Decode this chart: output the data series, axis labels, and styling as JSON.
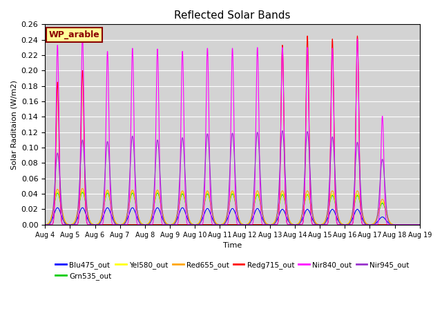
{
  "title": "Reflected Solar Bands",
  "xlabel": "Time",
  "ylabel": "Solar Raditaion (W/m2)",
  "ylim": [
    0,
    0.26
  ],
  "annotation_text": "WP_arable",
  "annotation_color": "#8B0000",
  "annotation_bg": "#FFFF99",
  "background_color": "#D3D3D3",
  "series": [
    {
      "name": "Blu475_out",
      "color": "#0000FF"
    },
    {
      "name": "Grn535_out",
      "color": "#00CC00"
    },
    {
      "name": "Yel580_out",
      "color": "#FFFF00"
    },
    {
      "name": "Red655_out",
      "color": "#FFA500"
    },
    {
      "name": "Redg715_out",
      "color": "#FF0000"
    },
    {
      "name": "Nir840_out",
      "color": "#FF00FF"
    },
    {
      "name": "Nir945_out",
      "color": "#9932CC"
    }
  ],
  "n_days": 15,
  "ppd": 300,
  "tick_labels": [
    "Aug 4",
    "Aug 5",
    "Aug 6",
    "Aug 7",
    "Aug 8",
    "Aug 9",
    "Aug 10",
    "Aug 11",
    "Aug 12",
    "Aug 13",
    "Aug 14",
    "Aug 15",
    "Aug 16",
    "Aug 17",
    "Aug 18",
    "Aug 19"
  ],
  "tick_positions": [
    0,
    1,
    2,
    3,
    4,
    5,
    6,
    7,
    8,
    9,
    10,
    11,
    12,
    13,
    14,
    15
  ],
  "yticks": [
    0.0,
    0.02,
    0.04,
    0.06,
    0.08,
    0.1,
    0.12,
    0.14,
    0.16,
    0.18,
    0.2,
    0.22,
    0.24,
    0.26
  ],
  "nir840_peaks": [
    0.233,
    0.245,
    0.225,
    0.229,
    0.228,
    0.225,
    0.229,
    0.229,
    0.23,
    0.23,
    0.23,
    0.229,
    0.241,
    0.141,
    0.0
  ],
  "nir945_peaks": [
    0.093,
    0.11,
    0.108,
    0.115,
    0.11,
    0.113,
    0.118,
    0.119,
    0.12,
    0.122,
    0.121,
    0.114,
    0.107,
    0.085,
    0.0
  ],
  "redg715_peaks": [
    0.185,
    0.2,
    0.0,
    0.0,
    0.0,
    0.0,
    0.0,
    0.0,
    0.0,
    0.233,
    0.245,
    0.241,
    0.245,
    0.0,
    0.0
  ],
  "red655_peaks": [
    0.046,
    0.047,
    0.045,
    0.045,
    0.045,
    0.044,
    0.044,
    0.044,
    0.044,
    0.044,
    0.044,
    0.044,
    0.044,
    0.033,
    0.0
  ],
  "yel580_peaks": [
    0.043,
    0.044,
    0.043,
    0.043,
    0.043,
    0.042,
    0.042,
    0.042,
    0.041,
    0.041,
    0.04,
    0.04,
    0.04,
    0.03,
    0.0
  ],
  "grn535_peaks": [
    0.041,
    0.042,
    0.041,
    0.041,
    0.041,
    0.04,
    0.04,
    0.04,
    0.039,
    0.039,
    0.039,
    0.038,
    0.038,
    0.028,
    0.0
  ],
  "blu475_peaks": [
    0.022,
    0.022,
    0.022,
    0.022,
    0.022,
    0.022,
    0.021,
    0.021,
    0.021,
    0.02,
    0.02,
    0.02,
    0.02,
    0.01,
    0.0
  ]
}
